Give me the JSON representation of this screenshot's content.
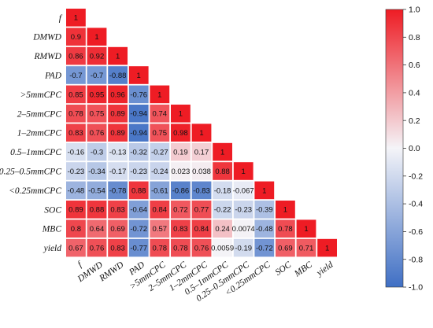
{
  "chart_data": {
    "type": "heatmap",
    "variables": [
      "f",
      "DMWD",
      "RMWD",
      "PAD",
      ">5mmCPC",
      "2–5mmCPC",
      "1–2mmCPC",
      "0.5–1mmCPC",
      "0.25–0.5mmCPC",
      "<0.25mmCPC",
      "SOC",
      "MBC",
      "yield"
    ],
    "values": [
      [
        1
      ],
      [
        0.9,
        1
      ],
      [
        0.86,
        0.92,
        1
      ],
      [
        -0.7,
        -0.7,
        -0.88,
        1
      ],
      [
        0.85,
        0.95,
        0.96,
        -0.76,
        1
      ],
      [
        0.78,
        0.75,
        0.89,
        -0.94,
        0.74,
        1
      ],
      [
        0.83,
        0.76,
        0.89,
        -0.94,
        0.75,
        0.98,
        1
      ],
      [
        -0.16,
        -0.3,
        -0.13,
        -0.32,
        -0.27,
        0.19,
        0.17,
        1
      ],
      [
        -0.23,
        -0.34,
        -0.17,
        -0.23,
        -0.24,
        0.023,
        0.038,
        0.88,
        1
      ],
      [
        -0.48,
        -0.54,
        -0.78,
        0.88,
        -0.61,
        -0.86,
        -0.83,
        -0.18,
        -0.067,
        1
      ],
      [
        0.89,
        0.88,
        0.83,
        -0.64,
        0.84,
        0.72,
        0.77,
        -0.22,
        -0.23,
        -0.39,
        1
      ],
      [
        0.8,
        0.64,
        0.69,
        -0.72,
        0.57,
        0.83,
        0.84,
        0.24,
        0.0074,
        -0.48,
        0.78,
        1
      ],
      [
        0.67,
        0.76,
        0.83,
        -0.77,
        0.78,
        0.78,
        0.76,
        0.0059,
        -0.19,
        -0.72,
        0.69,
        0.71,
        1
      ]
    ],
    "colorbar": {
      "range": [
        -1.0,
        1.0
      ],
      "ticks": [
        "1.0",
        "0.8",
        "0.6",
        "0.4",
        "0.2",
        "0.0",
        "-0.2",
        "-0.4",
        "-0.6",
        "-0.8",
        "-1.0"
      ],
      "colors": {
        "negative": "#3f6fc4",
        "zero": "#f4f4f8",
        "positive": "#ee1c24"
      }
    }
  }
}
